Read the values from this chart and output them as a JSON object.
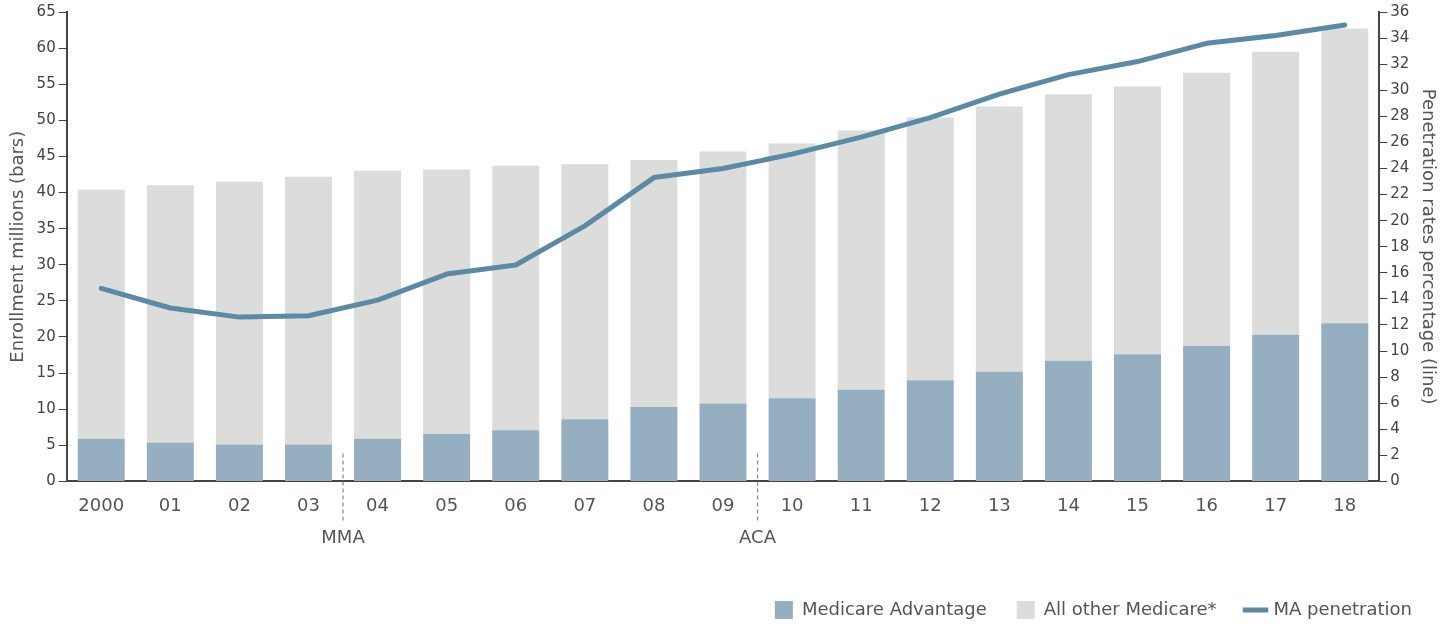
{
  "chart_data": {
    "type": "bar",
    "stacked": true,
    "ylabel": "Enrollment millions (bars)",
    "y2label": "Penetration rates percentage (line)",
    "categories": [
      "2000",
      "01",
      "02",
      "03",
      "04",
      "05",
      "06",
      "07",
      "08",
      "09",
      "10",
      "11",
      "12",
      "13",
      "14",
      "15",
      "16",
      "17",
      "18"
    ],
    "series": [
      {
        "name": "Medicare Advantage",
        "color": "#95afc0",
        "values": [
          5.9,
          5.4,
          5.1,
          5.1,
          5.9,
          6.6,
          7.1,
          8.6,
          10.3,
          10.8,
          11.5,
          12.7,
          14.0,
          15.2,
          16.7,
          17.6,
          18.8,
          20.3,
          21.9
        ]
      },
      {
        "name": "All other Medicare*",
        "color": "#dcdcdb",
        "values": [
          34.5,
          35.6,
          36.4,
          37.1,
          37.1,
          36.6,
          36.6,
          35.3,
          34.2,
          34.9,
          35.3,
          35.9,
          36.4,
          36.7,
          36.9,
          37.1,
          37.8,
          39.2,
          40.8
        ]
      },
      {
        "name": "MA penetration",
        "type": "line",
        "axis": "y2",
        "color": "#5a8aa5",
        "values": [
          14.8,
          13.3,
          12.6,
          12.7,
          13.9,
          15.9,
          16.6,
          19.6,
          23.3,
          24.0,
          25.1,
          26.4,
          27.9,
          29.7,
          31.2,
          32.2,
          33.6,
          34.2,
          35.0
        ]
      }
    ],
    "ylim": [
      0,
      65
    ],
    "yticks": [
      0,
      5,
      10,
      15,
      20,
      25,
      30,
      35,
      40,
      45,
      50,
      55,
      60,
      65
    ],
    "y2lim": [
      0,
      36
    ],
    "y2ticks": [
      0,
      2,
      4,
      6,
      8,
      10,
      12,
      14,
      16,
      18,
      20,
      22,
      24,
      26,
      28,
      30,
      32,
      34,
      36
    ],
    "annotations": [
      "MMA",
      "ACA"
    ],
    "legend": "bottom right",
    "grid": false,
    "marker": "none"
  }
}
